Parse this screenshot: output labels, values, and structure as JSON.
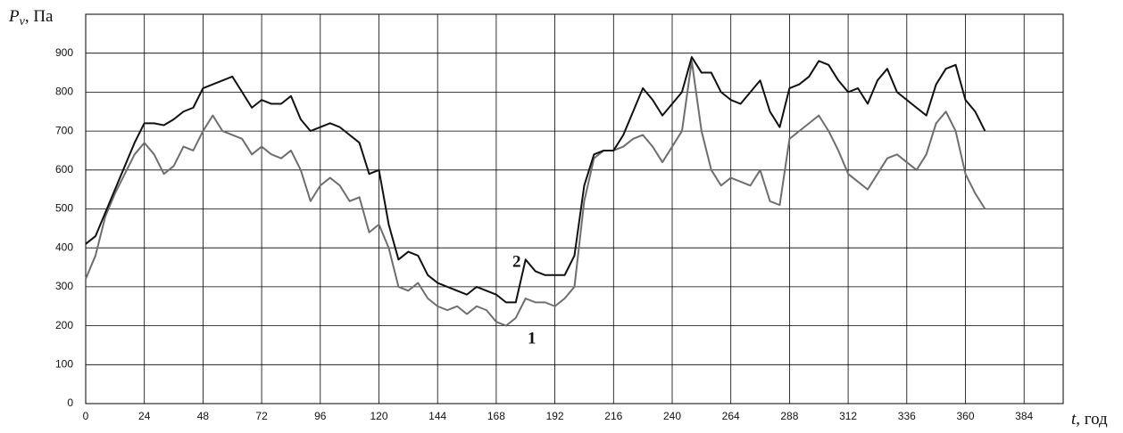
{
  "chart_data": {
    "type": "line",
    "y_label_symbol": "P",
    "y_label_subscript": "v",
    "y_label_unit": ", Па",
    "x_label_symbol": "t",
    "x_label_unit": ", год",
    "x": [
      0,
      4,
      8,
      12,
      16,
      20,
      24,
      28,
      32,
      36,
      40,
      44,
      48,
      52,
      56,
      60,
      64,
      68,
      72,
      76,
      80,
      84,
      88,
      92,
      96,
      100,
      104,
      108,
      112,
      116,
      120,
      124,
      128,
      132,
      136,
      140,
      144,
      148,
      152,
      156,
      160,
      164,
      168,
      172,
      176,
      180,
      184,
      188,
      192,
      196,
      200,
      204,
      208,
      212,
      216,
      220,
      224,
      228,
      232,
      236,
      240,
      244,
      248,
      252,
      256,
      260,
      264,
      268,
      272,
      276,
      280,
      284,
      288,
      292,
      296,
      300,
      304,
      308,
      312,
      316,
      320,
      324,
      328,
      332,
      336,
      340,
      344,
      348,
      352,
      356,
      360,
      364,
      368
    ],
    "series": [
      {
        "name": "1",
        "color": "#6e6e6e",
        "values": [
          320,
          380,
          480,
          540,
          590,
          640,
          670,
          640,
          590,
          610,
          660,
          650,
          700,
          740,
          700,
          690,
          680,
          640,
          660,
          640,
          630,
          650,
          600,
          520,
          560,
          580,
          560,
          520,
          530,
          440,
          460,
          400,
          300,
          290,
          310,
          270,
          250,
          240,
          250,
          230,
          250,
          240,
          210,
          200,
          220,
          270,
          260,
          260,
          250,
          270,
          300,
          520,
          630,
          650,
          650,
          660,
          680,
          690,
          660,
          620,
          660,
          700,
          880,
          700,
          600,
          560,
          580,
          570,
          560,
          600,
          520,
          510,
          680,
          700,
          720,
          740,
          700,
          650,
          590,
          570,
          550,
          590,
          630,
          640,
          620,
          600,
          640,
          720,
          750,
          700,
          590,
          540,
          500
        ]
      },
      {
        "name": "2",
        "color": "#111111",
        "values": [
          410,
          430,
          490,
          550,
          610,
          670,
          720,
          720,
          715,
          730,
          750,
          760,
          810,
          820,
          830,
          840,
          800,
          760,
          780,
          770,
          770,
          790,
          730,
          700,
          710,
          720,
          710,
          690,
          670,
          590,
          600,
          460,
          370,
          390,
          380,
          330,
          310,
          300,
          290,
          280,
          300,
          290,
          280,
          260,
          260,
          370,
          340,
          330,
          330,
          330,
          380,
          560,
          640,
          650,
          650,
          690,
          750,
          810,
          780,
          740,
          770,
          800,
          890,
          850,
          850,
          800,
          780,
          770,
          800,
          830,
          750,
          710,
          810,
          820,
          840,
          880,
          870,
          830,
          800,
          810,
          770,
          830,
          860,
          800,
          780,
          760,
          740,
          820,
          860,
          870,
          780,
          750,
          700
        ]
      }
    ],
    "xlim": [
      0,
      400
    ],
    "xticks": [
      0,
      24,
      48,
      72,
      96,
      120,
      144,
      168,
      192,
      216,
      240,
      264,
      288,
      312,
      336,
      360,
      384
    ],
    "ylim": [
      0,
      1000
    ],
    "yticks": [
      0,
      100,
      200,
      300,
      400,
      500,
      600,
      700,
      800,
      900
    ],
    "grid": true
  }
}
